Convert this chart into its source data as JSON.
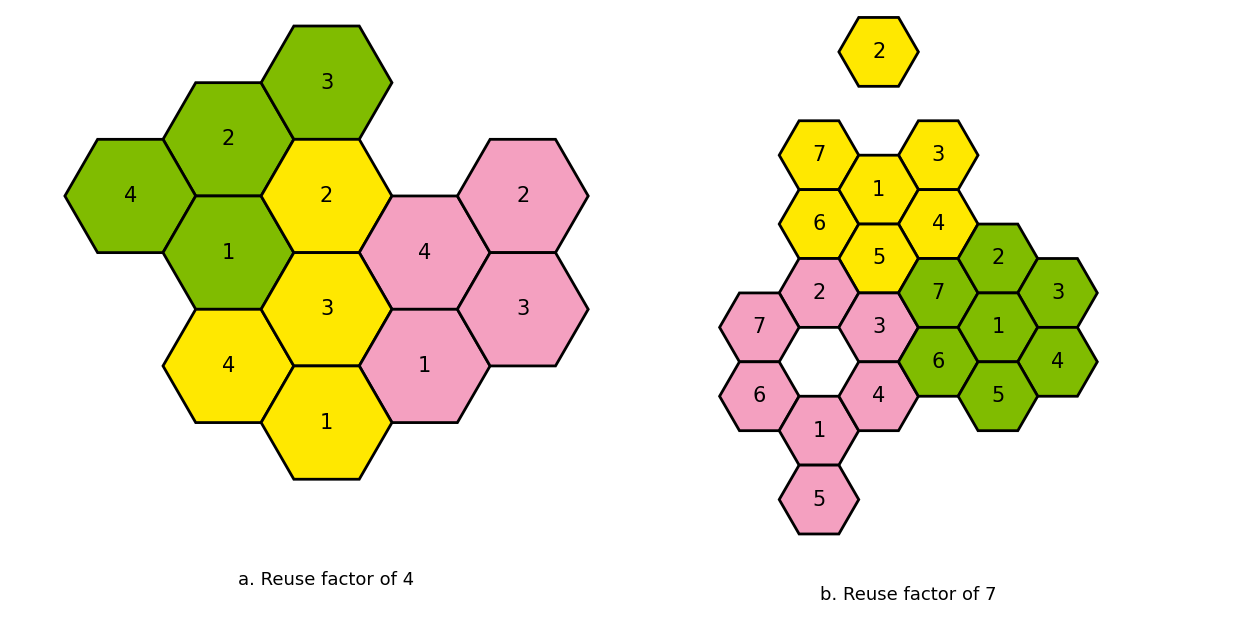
{
  "title_a": "a. Reuse factor of 4",
  "title_b": "b. Reuse factor of 7",
  "colors": {
    "green": "#80BC00",
    "yellow": "#FFE800",
    "pink": "#F4A0C0"
  },
  "hexes_a": [
    {
      "col": 1,
      "row": 0,
      "color": "green",
      "label": "2"
    },
    {
      "col": 2,
      "row": 0,
      "color": "green",
      "label": "3"
    },
    {
      "col": 0,
      "row": 1,
      "color": "green",
      "label": "4"
    },
    {
      "col": 1,
      "row": 1,
      "color": "green",
      "label": "1"
    },
    {
      "col": 2,
      "row": 1,
      "color": "yellow",
      "label": "2"
    },
    {
      "col": 3,
      "row": 1,
      "color": "pink",
      "label": "4"
    },
    {
      "col": 4,
      "row": 1,
      "color": "pink",
      "label": "2"
    },
    {
      "col": 1,
      "row": 2,
      "color": "yellow",
      "label": "4"
    },
    {
      "col": 2,
      "row": 2,
      "color": "yellow",
      "label": "3"
    },
    {
      "col": 3,
      "row": 2,
      "color": "pink",
      "label": "1"
    },
    {
      "col": 4,
      "row": 2,
      "color": "pink",
      "label": "3"
    },
    {
      "col": 2,
      "row": 3,
      "color": "yellow",
      "label": "1"
    }
  ],
  "hexes_b": [
    {
      "col": 2,
      "row": 0,
      "color": "yellow",
      "label": "2"
    },
    {
      "col": 1,
      "row": 1,
      "color": "yellow",
      "label": "7"
    },
    {
      "col": 3,
      "row": 1,
      "color": "yellow",
      "label": "3"
    },
    {
      "col": 1,
      "row": 2,
      "color": "yellow",
      "label": "6"
    },
    {
      "col": 2,
      "row": 2,
      "color": "yellow",
      "label": "1"
    },
    {
      "col": 3,
      "row": 2,
      "color": "yellow",
      "label": "4"
    },
    {
      "col": 2,
      "row": 3,
      "color": "yellow",
      "label": "5"
    },
    {
      "col": 1,
      "row": 3,
      "color": "pink",
      "label": "2"
    },
    {
      "col": 0,
      "row": 4,
      "color": "pink",
      "label": "7"
    },
    {
      "col": 2,
      "row": 4,
      "color": "pink",
      "label": "3"
    },
    {
      "col": 0,
      "row": 5,
      "color": "pink",
      "label": "6"
    },
    {
      "col": 1,
      "row": 5,
      "color": "pink",
      "label": "1"
    },
    {
      "col": 2,
      "row": 5,
      "color": "pink",
      "label": "4"
    },
    {
      "col": 1,
      "row": 6,
      "color": "pink",
      "label": "5"
    },
    {
      "col": 3,
      "row": 3,
      "color": "green",
      "label": "7"
    },
    {
      "col": 4,
      "row": 3,
      "color": "green",
      "label": "2"
    },
    {
      "col": 5,
      "row": 3,
      "color": "green",
      "label": "3"
    },
    {
      "col": 3,
      "row": 4,
      "color": "green",
      "label": "6"
    },
    {
      "col": 4,
      "row": 4,
      "color": "green",
      "label": "1"
    },
    {
      "col": 5,
      "row": 4,
      "color": "green",
      "label": "4"
    },
    {
      "col": 4,
      "row": 5,
      "color": "green",
      "label": "5"
    }
  ],
  "label_fontsize": 15,
  "title_fontsize": 13
}
